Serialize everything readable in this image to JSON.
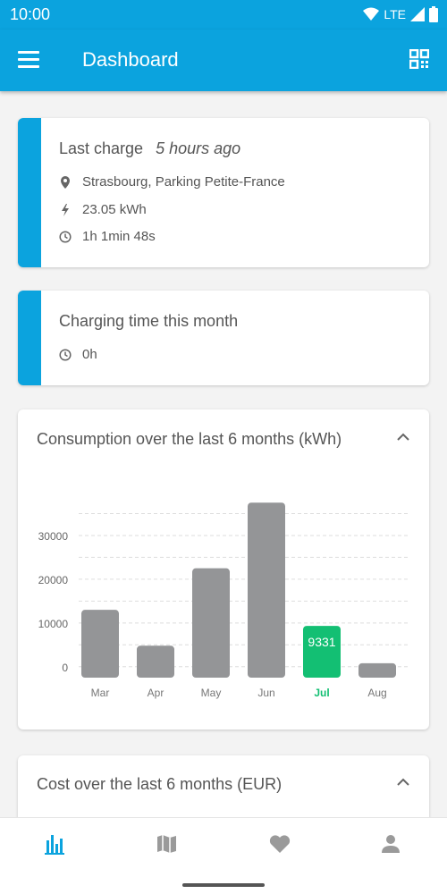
{
  "statusbar": {
    "time": "10:00",
    "network": "LTE"
  },
  "appbar": {
    "title": "Dashboard"
  },
  "last_charge": {
    "title": "Last charge",
    "ago": "5 hours ago",
    "location": "Strasbourg, Parking Petite-France",
    "energy": "23.05 kWh",
    "duration": "1h 1min 48s"
  },
  "charging_month": {
    "title": "Charging time this month",
    "value": "0h"
  },
  "consumption": {
    "title": "Consumption over the last 6 months (kWh)"
  },
  "cost": {
    "title": "Cost over the last 6 months (EUR)"
  },
  "colors": {
    "accent": "#0ba3de",
    "bar": "#949597",
    "highlight": "#13bf73"
  },
  "chart_data": {
    "type": "bar",
    "title": "Consumption over the last 6 months (kWh)",
    "categories": [
      "Mar",
      "Apr",
      "May",
      "Jun",
      "Jul",
      "Aug"
    ],
    "values": [
      13000,
      4800,
      22500,
      37500,
      9331,
      800
    ],
    "highlight_index": 4,
    "highlight_label": "9331",
    "yticks": [
      0,
      10000,
      20000,
      30000
    ],
    "ylim": [
      -2500,
      40000
    ],
    "grid": true
  }
}
